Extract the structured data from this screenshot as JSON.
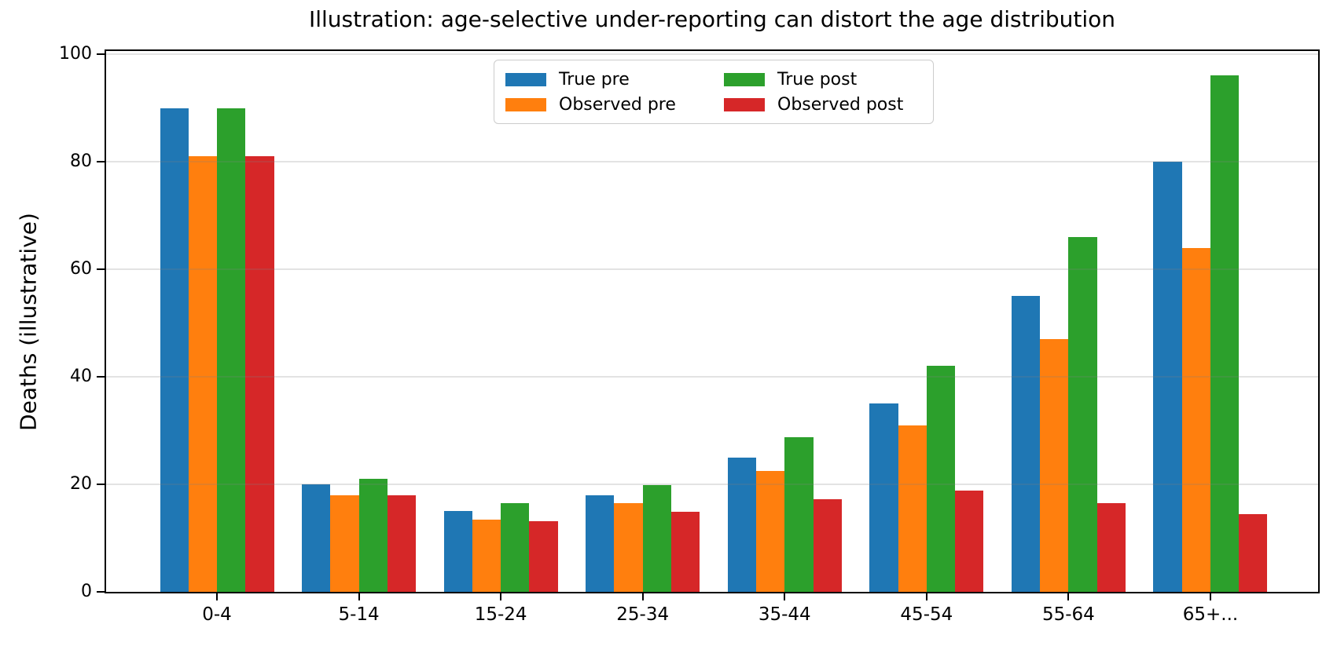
{
  "figure": {
    "background": "#ffffff",
    "title": "Illustration: age-selective under-reporting can distort the age distribution"
  },
  "chart_data": {
    "type": "bar",
    "title": "Illustration: age-selective under-reporting can distort the age distribution",
    "xlabel": "",
    "ylabel": "Deaths (illustrative)",
    "categories": [
      "0-4",
      "5-14",
      "15-24",
      "25-34",
      "35-44",
      "45-54",
      "55-64",
      "65+..."
    ],
    "series": [
      {
        "name": "True pre",
        "color": "#1f77b4",
        "values": [
          90,
          20,
          15,
          18,
          25,
          35,
          55,
          80
        ]
      },
      {
        "name": "Observed pre",
        "color": "#ff7f0e",
        "values": [
          81,
          18,
          13.5,
          16.5,
          22.5,
          31,
          47,
          64
        ]
      },
      {
        "name": "True post",
        "color": "#2ca02c",
        "values": [
          90,
          21,
          16.5,
          19.8,
          28.7,
          42,
          66,
          96
        ]
      },
      {
        "name": "Observed post",
        "color": "#d62728",
        "values": [
          81,
          17.9,
          13.2,
          14.9,
          17.2,
          18.9,
          16.5,
          14.4
        ]
      }
    ],
    "ylim": [
      0,
      100
    ],
    "yticks": [
      0,
      20,
      40,
      60,
      80,
      100
    ],
    "grid": true,
    "grid_axis": "y",
    "legend_position": "upper center",
    "legend_columns": 2,
    "legend_order": [
      "True pre",
      "Observed pre",
      "True post",
      "Observed post"
    ]
  }
}
